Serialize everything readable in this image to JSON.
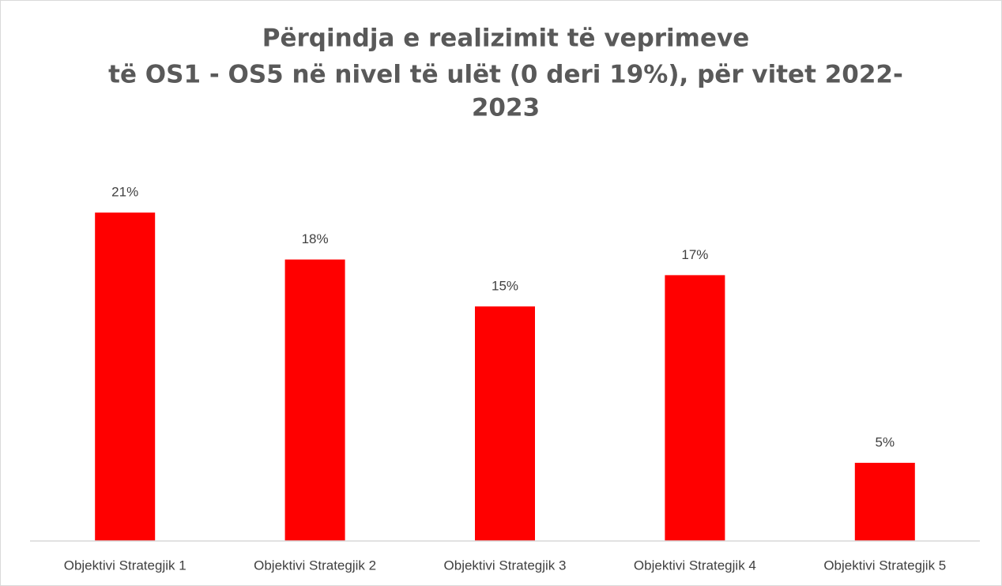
{
  "chart_data": {
    "type": "bar",
    "title": [
      "Përqindja e realizimit të veprimeve",
      "të OS1 - OS5 në nivel të ulët (0 deri 19%), për vitet 2022-",
      "2023"
    ],
    "categories": [
      "Objektivi Strategjik 1",
      "Objektivi Strategjik 2",
      "Objektivi Strategjik 3",
      "Objektivi Strategjik 4",
      "Objektivi Strategjik 5"
    ],
    "values": [
      21,
      18,
      15,
      17,
      5
    ],
    "value_labels": [
      "21%",
      "18%",
      "15%",
      "17%",
      "5%"
    ],
    "color": "#ff0000",
    "ylim": [
      0,
      25
    ]
  }
}
